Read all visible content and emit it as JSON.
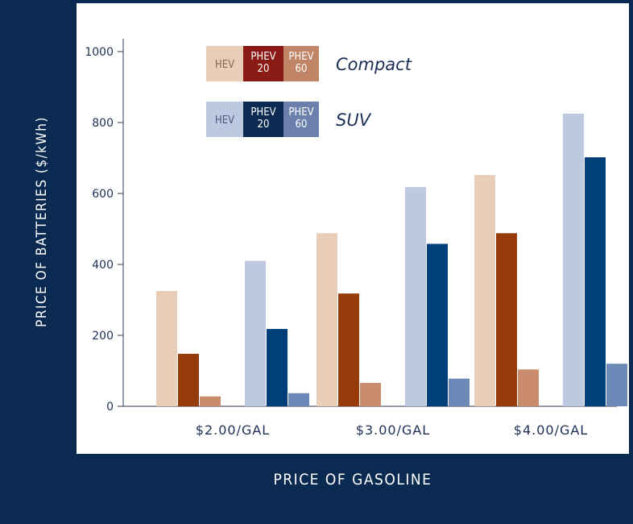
{
  "chart_data": {
    "type": "bar",
    "xlabel": "PRICE OF GASOLINE",
    "ylabel": "PRICE OF BATTERIES ($/kWh)",
    "ylim": [
      0,
      1000
    ],
    "yticks": [
      0,
      200,
      400,
      600,
      800,
      1000
    ],
    "categories": [
      "$2.00/GAL",
      "$3.00/GAL",
      "$4.00/GAL"
    ],
    "series": [
      {
        "name": "Compact HEV",
        "color": "#e8cdb9",
        "values": [
          325,
          488,
          652
        ]
      },
      {
        "name": "Compact PHEV 20",
        "color": "#963c0b",
        "values": [
          148,
          318,
          488
        ]
      },
      {
        "name": "Compact PHEV 60",
        "color": "#c98d6b",
        "values": [
          28,
          66,
          104
        ]
      },
      {
        "name": "SUV HEV",
        "color": "#bec8e0",
        "values": [
          410,
          618,
          825
        ]
      },
      {
        "name": "SUV PHEV 20",
        "color": "#003f7a",
        "values": [
          218,
          458,
          702
        ]
      },
      {
        "name": "SUV PHEV 60",
        "color": "#6b88b7",
        "values": [
          37,
          78,
          120
        ]
      }
    ],
    "legend": [
      {
        "group": "Compact",
        "items": [
          {
            "lines": [
              "HEV"
            ],
            "bg": "#e8cdb9",
            "fg": "#8a6a55"
          },
          {
            "lines": [
              "PHEV",
              "20"
            ],
            "bg": "#8a1a14",
            "fg": "#ffffff"
          },
          {
            "lines": [
              "PHEV",
              "60"
            ],
            "bg": "#c08466",
            "fg": "#ffffff"
          }
        ]
      },
      {
        "group": "SUV",
        "items": [
          {
            "lines": [
              "HEV"
            ],
            "bg": "#bec8e0",
            "fg": "#4a5a80"
          },
          {
            "lines": [
              "PHEV",
              "20"
            ],
            "bg": "#0b2a52",
            "fg": "#ffffff"
          },
          {
            "lines": [
              "PHEV",
              "60"
            ],
            "bg": "#6b80ac",
            "fg": "#ffffff"
          }
        ]
      }
    ],
    "grid": false,
    "legend_position": "top-left"
  }
}
